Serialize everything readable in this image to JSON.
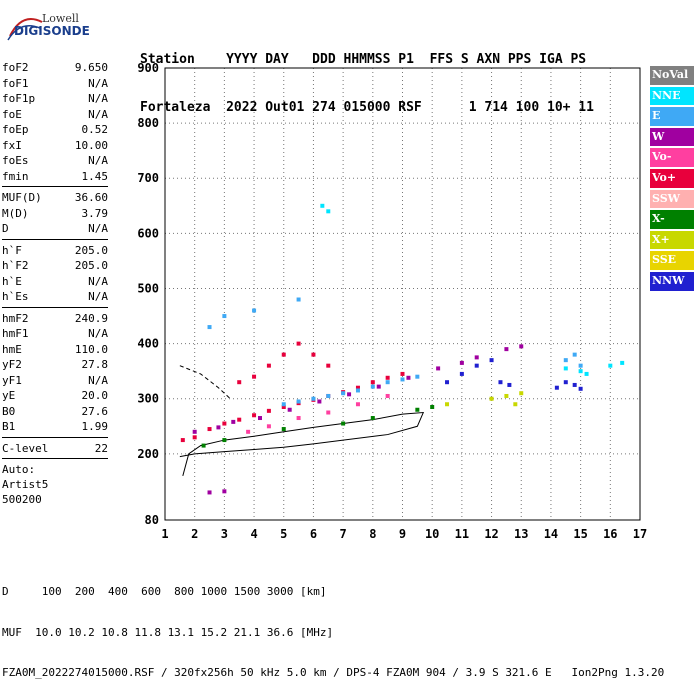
{
  "logo": {
    "line1": "Lowell",
    "line2": "DIGISONDE"
  },
  "header": {
    "labels": "Station    YYYY DAY   DDD HHMMSS P1  FFS S AXN PPS IGA PS",
    "values": "Fortaleza  2022 Out01 274 015000 RSF      1 714 100 10+ 11"
  },
  "params": {
    "group1": [
      {
        "name": "foF2",
        "value": "9.650"
      },
      {
        "name": "foF1",
        "value": "N/A"
      },
      {
        "name": "foF1p",
        "value": "N/A"
      },
      {
        "name": "foE",
        "value": "N/A"
      },
      {
        "name": "foEp",
        "value": "0.52"
      },
      {
        "name": "fxI",
        "value": "10.00"
      },
      {
        "name": "foEs",
        "value": "N/A"
      },
      {
        "name": "fmin",
        "value": "1.45"
      }
    ],
    "group2": [
      {
        "name": "MUF(D)",
        "value": "36.60"
      },
      {
        "name": "M(D)",
        "value": "3.79"
      },
      {
        "name": "D",
        "value": "N/A"
      }
    ],
    "group3": [
      {
        "name": "h`F",
        "value": "205.0"
      },
      {
        "name": "h`F2",
        "value": "205.0"
      },
      {
        "name": "h`E",
        "value": "N/A"
      },
      {
        "name": "h`Es",
        "value": "N/A"
      }
    ],
    "group4": [
      {
        "name": "hmF2",
        "value": "240.9"
      },
      {
        "name": "hmF1",
        "value": "N/A"
      },
      {
        "name": "hmE",
        "value": "110.0"
      },
      {
        "name": "yF2",
        "value": "27.8"
      },
      {
        "name": "yF1",
        "value": "N/A"
      },
      {
        "name": "yE",
        "value": "20.0"
      },
      {
        "name": "B0",
        "value": "27.6"
      },
      {
        "name": "B1",
        "value": "1.99"
      }
    ],
    "group5": [
      {
        "name": "C-level",
        "value": "22"
      }
    ],
    "auto": [
      "Auto:",
      "Artist5",
      "500200"
    ]
  },
  "legend": [
    {
      "label": "NoVal",
      "color": "#808080"
    },
    {
      "label": "NNE",
      "color": "#00e5ff"
    },
    {
      "label": "E",
      "color": "#3fa9f5"
    },
    {
      "label": "W",
      "color": "#a000a0"
    },
    {
      "label": "Vo-",
      "color": "#ff3fa0"
    },
    {
      "label": "Vo+",
      "color": "#e8003c"
    },
    {
      "label": "SSW",
      "color": "#ffb0b0"
    },
    {
      "label": "X-",
      "color": "#008000"
    },
    {
      "label": "X+",
      "color": "#c8d800"
    },
    {
      "label": "SSE",
      "color": "#e8d400"
    },
    {
      "label": "NNW",
      "color": "#2020d0"
    }
  ],
  "footer": {
    "line1": "D     100  200  400  600  800 1000 1500 3000 [km]",
    "line2": "MUF  10.0 10.2 10.8 11.8 13.1 15.2 21.1 36.6 [MHz]",
    "line3": "FZA0M_2022274015000.RSF / 320fx256h 50 kHz 5.0 km / DPS-4 FZA0M 904 / 3.9 S 321.6 E   Ion2Png 1.3.20"
  },
  "chart_data": {
    "type": "scatter",
    "xlim": [
      1,
      17
    ],
    "ylim": [
      80,
      900
    ],
    "x_ticks": [
      1,
      2,
      3,
      4,
      5,
      6,
      7,
      8,
      9,
      10,
      11,
      12,
      13,
      14,
      15,
      16,
      17
    ],
    "y_ticks": [
      80,
      200,
      300,
      400,
      500,
      600,
      700,
      800,
      900
    ],
    "grid": true,
    "series": [
      {
        "name": "Vo+",
        "color": "#e8003c",
        "points": [
          [
            1.6,
            225
          ],
          [
            2.0,
            230
          ],
          [
            2.5,
            245
          ],
          [
            3.0,
            255
          ],
          [
            3.5,
            262
          ],
          [
            4.0,
            270
          ],
          [
            4.5,
            278
          ],
          [
            5.0,
            285
          ],
          [
            5.5,
            292
          ],
          [
            6.0,
            298
          ],
          [
            6.5,
            305
          ],
          [
            7.0,
            312
          ],
          [
            7.5,
            320
          ],
          [
            8.0,
            330
          ],
          [
            8.5,
            338
          ],
          [
            9.0,
            345
          ],
          [
            3.5,
            330
          ],
          [
            4.0,
            340
          ],
          [
            4.5,
            360
          ],
          [
            5.0,
            380
          ],
          [
            5.5,
            400
          ],
          [
            6.0,
            380
          ],
          [
            6.5,
            360
          ]
        ]
      },
      {
        "name": "E",
        "color": "#3fa9f5",
        "points": [
          [
            5.0,
            290
          ],
          [
            5.5,
            295
          ],
          [
            6.0,
            300
          ],
          [
            6.5,
            305
          ],
          [
            7.0,
            310
          ],
          [
            7.5,
            315
          ],
          [
            8.0,
            322
          ],
          [
            8.5,
            330
          ],
          [
            9.0,
            335
          ],
          [
            9.5,
            340
          ],
          [
            2.5,
            430
          ],
          [
            3.0,
            450
          ],
          [
            4.0,
            460
          ],
          [
            5.5,
            480
          ],
          [
            14.5,
            370
          ],
          [
            14.8,
            380
          ],
          [
            15.0,
            360
          ]
        ]
      },
      {
        "name": "W",
        "color": "#a000a0",
        "points": [
          [
            2.0,
            240
          ],
          [
            2.8,
            248
          ],
          [
            3.3,
            258
          ],
          [
            4.2,
            265
          ],
          [
            5.2,
            280
          ],
          [
            6.2,
            295
          ],
          [
            7.2,
            308
          ],
          [
            8.2,
            322
          ],
          [
            9.2,
            338
          ],
          [
            10.2,
            355
          ],
          [
            11.0,
            365
          ],
          [
            11.5,
            375
          ],
          [
            12.5,
            390
          ],
          [
            13.0,
            395
          ],
          [
            2.5,
            130
          ],
          [
            3.0,
            132
          ]
        ]
      },
      {
        "name": "NNW",
        "color": "#2020d0",
        "points": [
          [
            10.5,
            330
          ],
          [
            11.0,
            345
          ],
          [
            11.5,
            360
          ],
          [
            12.0,
            370
          ],
          [
            12.3,
            330
          ],
          [
            12.6,
            325
          ],
          [
            14.2,
            320
          ],
          [
            14.5,
            330
          ],
          [
            14.8,
            325
          ],
          [
            15.0,
            318
          ]
        ]
      },
      {
        "name": "X+",
        "color": "#c8d800",
        "points": [
          [
            12.0,
            300
          ],
          [
            12.5,
            305
          ],
          [
            13.0,
            310
          ],
          [
            12.8,
            290
          ],
          [
            10.5,
            290
          ]
        ]
      },
      {
        "name": "X-",
        "color": "#008000",
        "points": [
          [
            2.3,
            215
          ],
          [
            3.0,
            225
          ],
          [
            5.0,
            245
          ],
          [
            7.0,
            255
          ],
          [
            8.0,
            265
          ],
          [
            9.5,
            280
          ],
          [
            10.0,
            285
          ]
        ]
      },
      {
        "name": "NNE",
        "color": "#00e5ff",
        "points": [
          [
            14.5,
            355
          ],
          [
            15.0,
            350
          ],
          [
            15.2,
            345
          ],
          [
            16.0,
            360
          ],
          [
            16.4,
            365
          ],
          [
            6.3,
            650
          ],
          [
            6.5,
            640
          ]
        ]
      },
      {
        "name": "Vo-",
        "color": "#ff3fa0",
        "points": [
          [
            3.8,
            240
          ],
          [
            4.5,
            250
          ],
          [
            5.5,
            265
          ],
          [
            6.5,
            275
          ],
          [
            7.5,
            290
          ],
          [
            8.5,
            305
          ]
        ]
      }
    ]
  }
}
